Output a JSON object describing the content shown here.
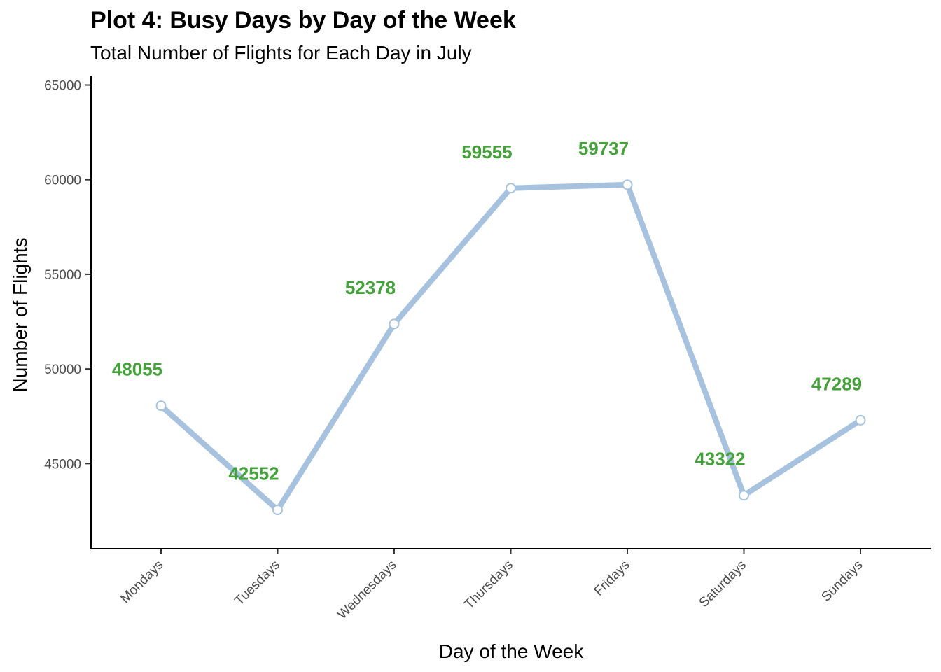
{
  "chart_data": {
    "type": "line",
    "title": "Plot 4: Busy Days by Day of the Week",
    "subtitle": "Total Number of Flights for Each Day in July",
    "xlabel": "Day of the Week",
    "ylabel": "Number of Flights",
    "categories": [
      "Mondays",
      "Tuesdays",
      "Wednesdays",
      "Thursdays",
      "Fridays",
      "Saturdays",
      "Sundays"
    ],
    "values": [
      48055,
      42552,
      52378,
      59555,
      59737,
      43322,
      47289
    ],
    "ylim": [
      40500,
      65500
    ],
    "yticks": [
      45000,
      50000,
      55000,
      60000,
      65000
    ],
    "data_labels": true,
    "grid": false,
    "colors": {
      "line": "#a7c2de",
      "point_fill": "#ffffff",
      "label": "#43a239",
      "axis": "#000000"
    }
  }
}
